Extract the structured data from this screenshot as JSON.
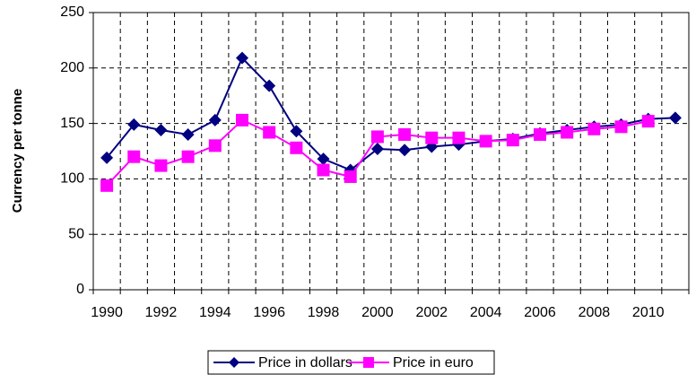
{
  "chart_data": {
    "type": "line",
    "categories": [
      "1990",
      null,
      "1992",
      null,
      "1994",
      null,
      "1996",
      null,
      "1998",
      null,
      "2000",
      null,
      "2002",
      null,
      "2004",
      null,
      "2006",
      null,
      "2008",
      null,
      "2010",
      null
    ],
    "y_label": "Currency per tonne",
    "series": [
      {
        "name": "Price in dollars",
        "color": "#000080",
        "marker": "diamond",
        "values": [
          119,
          149,
          144,
          140,
          153,
          209,
          184,
          143,
          118,
          108,
          127,
          126,
          129,
          131,
          134,
          136,
          141,
          144,
          147,
          149,
          154,
          155
        ]
      },
      {
        "name": "Price in euro",
        "color": "#ff00ff",
        "marker": "square",
        "values": [
          94,
          120,
          112,
          120,
          130,
          153,
          142,
          128,
          108,
          102,
          138,
          140,
          137,
          137,
          134,
          135,
          140,
          142,
          145,
          147,
          152,
          null
        ]
      }
    ],
    "ylim": [
      0,
      250
    ],
    "yticks": [
      0,
      50,
      100,
      150,
      200,
      250
    ],
    "grid": true,
    "legend": "bottom"
  }
}
